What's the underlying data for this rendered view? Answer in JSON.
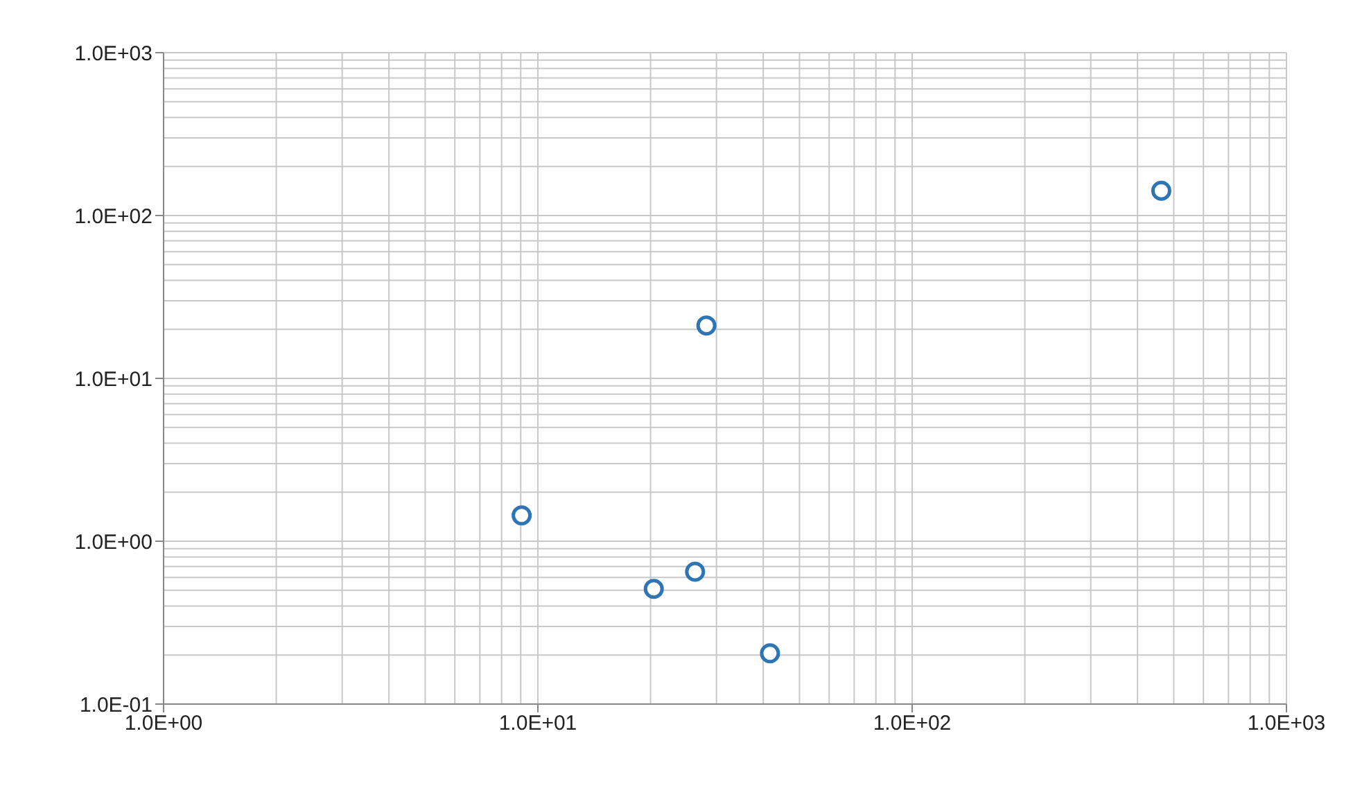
{
  "chart_data": {
    "type": "scatter",
    "x": [
      9.05,
      20.4,
      26.3,
      28.2,
      41.7,
      463
    ],
    "values": [
      1.44,
      0.51,
      0.65,
      21.1,
      0.205,
      142
    ],
    "color": "#2e75b6",
    "marker": "circle",
    "log": "xy",
    "grid": true,
    "xlim": [
      1,
      1000
    ],
    "xticks": [
      {
        "value": 1,
        "label": "1.0E+00"
      },
      {
        "value": 10,
        "label": "1.0E+01"
      },
      {
        "value": 100,
        "label": "1.0E+02"
      },
      {
        "value": 1000,
        "label": "1.0E+03"
      }
    ],
    "ylim": [
      0.1,
      1000
    ],
    "yticks": [
      {
        "value": 0.1,
        "label": "1.0E-01"
      },
      {
        "value": 1,
        "label": "1.0E+00"
      },
      {
        "value": 10,
        "label": "1.0E+01"
      },
      {
        "value": 100,
        "label": "1.0E+02"
      },
      {
        "value": 1000,
        "label": "1.0E+03"
      }
    ]
  }
}
